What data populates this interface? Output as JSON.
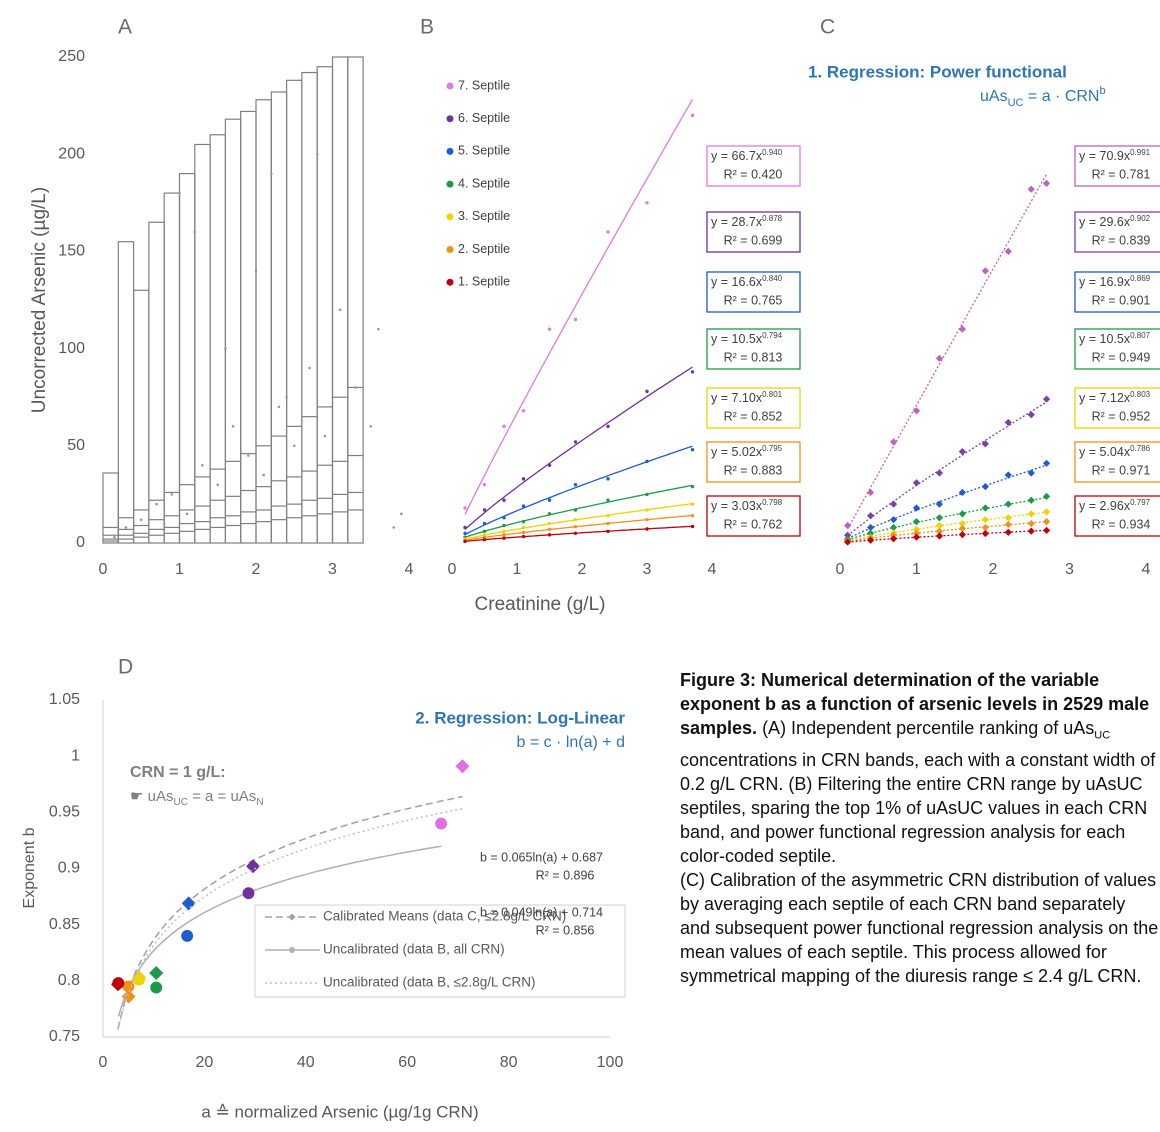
{
  "chart_data": [
    {
      "type": "box",
      "label": "A",
      "y_label": "Uncorrected Arsenic (µg/L)",
      "color": "#7f7f7f",
      "xlim": [
        0,
        4
      ],
      "ylim": [
        0,
        250
      ],
      "xticks": [
        0,
        1,
        2,
        3,
        4
      ],
      "yticks": [
        0,
        50,
        100,
        150,
        200,
        250
      ],
      "bins": [
        0,
        0.2,
        0.4,
        0.6,
        0.8,
        1,
        1.2,
        1.4,
        1.6,
        1.8,
        2,
        2.2,
        2.4,
        2.6,
        2.8,
        3,
        3.2,
        3.4
      ],
      "levels": [
        [
          1,
          2,
          4,
          8,
          36
        ],
        [
          2,
          4,
          7,
          13,
          155
        ],
        [
          3,
          5,
          9,
          17,
          130
        ],
        [
          4,
          7,
          12,
          22,
          165
        ],
        [
          5,
          8,
          14,
          26,
          180
        ],
        [
          6,
          10,
          17,
          30,
          190
        ],
        [
          7,
          11,
          19,
          34,
          205
        ],
        [
          8,
          13,
          22,
          38,
          210
        ],
        [
          9,
          14,
          24,
          42,
          218
        ],
        [
          10,
          16,
          27,
          46,
          222
        ],
        [
          11,
          17,
          29,
          50,
          228
        ],
        [
          12,
          19,
          32,
          55,
          232
        ],
        [
          13,
          20,
          34,
          60,
          238
        ],
        [
          14,
          22,
          37,
          65,
          242
        ],
        [
          15,
          23,
          40,
          70,
          245
        ],
        [
          16,
          25,
          42,
          75,
          250
        ],
        [
          17,
          26,
          45,
          80,
          250
        ]
      ],
      "points": {
        "x": [
          0.15,
          0.3,
          0.5,
          0.7,
          0.9,
          1.1,
          1.3,
          1.5,
          1.7,
          1.9,
          2.1,
          2.3,
          2.5,
          2.7,
          2.9,
          3.1,
          3.3,
          3.6,
          3.9,
          1.2,
          2.0,
          2.8,
          0.4,
          1.6,
          2.4,
          3.5,
          0.8,
          3.8,
          1.0,
          2.2
        ],
        "y": [
          3,
          8,
          12,
          20,
          25,
          15,
          40,
          30,
          60,
          45,
          35,
          70,
          50,
          90,
          55,
          120,
          80,
          110,
          15,
          160,
          140,
          200,
          5,
          100,
          75,
          60,
          10,
          8,
          180,
          190
        ]
      }
    },
    {
      "type": "scatter",
      "label": "B",
      "x_label": "Creatinine (g/L)",
      "fit": "power",
      "marker": "circle",
      "xlim": [
        0,
        4
      ],
      "ylim": [
        0,
        250
      ],
      "xticks": [
        0,
        1,
        2,
        3,
        4
      ],
      "series": [
        {
          "name": "7. Septile",
          "color": "#e07be0",
          "x": [
            0.2,
            0.5,
            0.8,
            1.1,
            1.5,
            1.9,
            2.4,
            3.0,
            3.7
          ],
          "values": [
            18,
            30,
            60,
            68,
            110,
            115,
            160,
            175,
            220
          ],
          "fit": {
            "a": 66.7,
            "b": 0.94
          },
          "labels": {
            "eq": "y = 66.7x",
            "exp": "0.940",
            "r2": "R² = 0.420"
          }
        },
        {
          "name": "6. Septile",
          "color": "#7030a0",
          "x": [
            0.2,
            0.5,
            0.8,
            1.1,
            1.5,
            1.9,
            2.4,
            3.0,
            3.7
          ],
          "values": [
            8,
            17,
            22,
            33,
            40,
            52,
            60,
            78,
            88
          ],
          "fit": {
            "a": 28.7,
            "b": 0.878
          },
          "labels": {
            "eq": "y = 28.7x",
            "exp": "0.878",
            "r2": "R² = 0.699"
          }
        },
        {
          "name": "5. Septile",
          "color": "#1f5bd1",
          "x": [
            0.2,
            0.5,
            0.8,
            1.1,
            1.5,
            1.9,
            2.4,
            3.0,
            3.7
          ],
          "values": [
            5,
            10,
            13,
            19,
            22,
            30,
            33,
            42,
            48
          ],
          "fit": {
            "a": 16.6,
            "b": 0.84
          },
          "labels": {
            "eq": "y = 16.6x",
            "exp": "0.840",
            "r2": "R² = 0.765"
          }
        },
        {
          "name": "4. Septile",
          "color": "#1a9b48",
          "x": [
            0.2,
            0.5,
            0.8,
            1.1,
            1.5,
            1.9,
            2.4,
            3.0,
            3.7
          ],
          "values": [
            3,
            6,
            9,
            11,
            15,
            17,
            22,
            25,
            29
          ],
          "fit": {
            "a": 10.5,
            "b": 0.794
          },
          "labels": {
            "eq": "y = 10.5x",
            "exp": "0.794",
            "r2": "R² = 0.813"
          }
        },
        {
          "name": "3. Septile",
          "color": "#f2d100",
          "x": [
            0.2,
            0.5,
            0.8,
            1.1,
            1.5,
            1.9,
            2.4,
            3.0,
            3.7
          ],
          "values": [
            2,
            4,
            6,
            8,
            10,
            12,
            14,
            17,
            20
          ],
          "fit": {
            "a": 7.1,
            "b": 0.801
          },
          "labels": {
            "eq": "y = 7.10x",
            "exp": "0.801",
            "r2": "R² = 0.852"
          }
        },
        {
          "name": "2. Septile",
          "color": "#f39019",
          "x": [
            0.2,
            0.5,
            0.8,
            1.1,
            1.5,
            1.9,
            2.4,
            3.0,
            3.7
          ],
          "values": [
            1.4,
            2.9,
            4.2,
            5.4,
            7,
            8.4,
            10,
            12,
            14
          ],
          "fit": {
            "a": 5.02,
            "b": 0.795
          },
          "labels": {
            "eq": "y = 5.02x",
            "exp": "0.795",
            "r2": "R² = 0.883"
          }
        },
        {
          "name": "1. Septile",
          "color": "#c0000b",
          "x": [
            0.2,
            0.5,
            0.8,
            1.1,
            1.5,
            1.9,
            2.4,
            3.0,
            3.7
          ],
          "values": [
            0.8,
            1.7,
            2.5,
            3.3,
            4.2,
            5,
            6,
            7.2,
            8.5
          ],
          "fit": {
            "a": 3.03,
            "b": 0.798
          },
          "labels": {
            "eq": "y = 3.03x",
            "exp": "0.798",
            "r2": "R² = 0.762"
          }
        }
      ]
    },
    {
      "type": "scatter",
      "label": "C",
      "title": "1. Regression: Power functional",
      "subtitle_parts": [
        "uAs",
        "UC",
        " = a · CRN",
        "b"
      ],
      "fit": "power",
      "marker": "diamond",
      "xlim": [
        0,
        4
      ],
      "ylim": [
        0,
        250
      ],
      "xticks": [
        0,
        1,
        2,
        3,
        4
      ],
      "series": [
        {
          "color": "#c060c0",
          "x": [
            0.1,
            0.4,
            0.7,
            1.0,
            1.3,
            1.6,
            1.9,
            2.2,
            2.5,
            2.7
          ],
          "values": [
            9,
            26,
            52,
            68,
            95,
            110,
            140,
            150,
            182,
            185
          ],
          "fit": {
            "a": 70.9,
            "b": 0.991
          },
          "labels": {
            "eq": "y = 70.9x",
            "exp": "0.991",
            "r2": "R² = 0.781"
          }
        },
        {
          "color": "#7a3fb0",
          "x": [
            0.1,
            0.4,
            0.7,
            1.0,
            1.3,
            1.6,
            1.9,
            2.2,
            2.5,
            2.7
          ],
          "values": [
            4,
            14,
            20,
            31,
            36,
            47,
            51,
            62,
            66,
            74
          ],
          "fit": {
            "a": 29.6,
            "b": 0.902
          },
          "labels": {
            "eq": "y = 29.6x",
            "exp": "0.902",
            "r2": "R² = 0.839"
          }
        },
        {
          "color": "#1f5bd1",
          "x": [
            0.1,
            0.4,
            0.7,
            1.0,
            1.3,
            1.6,
            1.9,
            2.2,
            2.5,
            2.7
          ],
          "values": [
            2,
            8,
            12,
            18,
            20,
            26,
            29,
            35,
            36,
            41
          ],
          "fit": {
            "a": 16.9,
            "b": 0.869
          },
          "labels": {
            "eq": "y = 16.9x",
            "exp": "0.869",
            "r2": "R² = 0.901"
          }
        },
        {
          "color": "#1a9b48",
          "x": [
            0.1,
            0.4,
            0.7,
            1.0,
            1.3,
            1.6,
            1.9,
            2.2,
            2.5,
            2.7
          ],
          "values": [
            2,
            5,
            8,
            11,
            13,
            15,
            18,
            20,
            22,
            24
          ],
          "fit": {
            "a": 10.5,
            "b": 0.807
          },
          "labels": {
            "eq": "y = 10.5x",
            "exp": "0.807",
            "r2": "R² = 0.949"
          }
        },
        {
          "color": "#f2d100",
          "x": [
            0.1,
            0.4,
            0.7,
            1.0,
            1.3,
            1.6,
            1.9,
            2.2,
            2.5,
            2.7
          ],
          "values": [
            1,
            3,
            5,
            7,
            9,
            10,
            12,
            13,
            15,
            16
          ],
          "fit": {
            "a": 7.12,
            "b": 0.803
          },
          "labels": {
            "eq": "y = 7.12x",
            "exp": "0.803",
            "r2": "R² = 0.952"
          }
        },
        {
          "color": "#f39019",
          "x": [
            0.1,
            0.4,
            0.7,
            1.0,
            1.3,
            1.6,
            1.9,
            2.2,
            2.5,
            2.7
          ],
          "values": [
            1,
            2.5,
            4,
            5,
            6,
            7.5,
            8,
            9.5,
            10,
            11
          ],
          "fit": {
            "a": 5.04,
            "b": 0.786
          },
          "labels": {
            "eq": "y = 5.04x",
            "exp": "0.786",
            "r2": "R² = 0.971"
          }
        },
        {
          "color": "#c0000b",
          "x": [
            0.1,
            0.4,
            0.7,
            1.0,
            1.3,
            1.6,
            1.9,
            2.2,
            2.5,
            2.7
          ],
          "values": [
            0.5,
            1.4,
            2.2,
            3,
            3.6,
            4.3,
            4.9,
            5.5,
            6.1,
            6.5
          ],
          "fit": {
            "a": 2.96,
            "b": 0.797
          },
          "labels": {
            "eq": "y = 2.96x",
            "exp": "0.797",
            "r2": "R² = 0.934"
          }
        }
      ]
    },
    {
      "type": "scatter",
      "label": "D",
      "x_label": "a ≙ normalized Arsenic (µg/1g CRN)",
      "y_label": "Exponent b",
      "fit": "log",
      "title": "2. Regression: Log-Linear",
      "subtitle": "b = c  · ln(a) + d",
      "note_title": "CRN = 1 g/L:",
      "note_parts": [
        "☛ uAs",
        "UC",
        " = a = uAs",
        "N"
      ],
      "xlim": [
        0,
        100
      ],
      "ylim": [
        0.75,
        1.05
      ],
      "xticks": [
        0,
        20,
        40,
        60,
        80,
        100
      ],
      "yticks": [
        0.75,
        0.8,
        0.85,
        0.9,
        0.95,
        1,
        1.05
      ],
      "series": [
        {
          "name": "Calibrated Means (data C, ≤2.8g/L CRN)",
          "marker": "diamond",
          "line": "dashed",
          "color": "#a0a0a0",
          "x": [
            70.9,
            29.6,
            16.9,
            10.5,
            7.12,
            5.04,
            2.96
          ],
          "values": [
            0.991,
            0.902,
            0.869,
            0.807,
            0.803,
            0.786,
            0.797
          ],
          "colors": [
            "#e070e0",
            "#7030a0",
            "#1f5bd1",
            "#1a9b48",
            "#f2d100",
            "#f39019",
            "#c0000b"
          ],
          "fit": {
            "c": 0.065,
            "d": 0.687
          },
          "eq": "b = 0.065ln(a) + 0.687",
          "r2": "R² = 0.896"
        },
        {
          "name": "Uncalibrated (data B, all CRN)",
          "marker": "circle",
          "line": "solid",
          "color": "#b0b0b0",
          "x": [
            66.7,
            28.7,
            16.6,
            10.5,
            7.1,
            5.02,
            3.03
          ],
          "values": [
            0.94,
            0.878,
            0.84,
            0.794,
            0.801,
            0.795,
            0.798
          ],
          "colors": [
            "#e070e0",
            "#7030a0",
            "#1f5bd1",
            "#1a9b48",
            "#f2d100",
            "#f39019",
            "#c0000b"
          ],
          "fit": {
            "c": 0.049,
            "d": 0.714
          },
          "eq": "b = 0.049ln(a) + 0.714",
          "r2": "R² = 0.856"
        },
        {
          "name": "Uncalibrated (data B, ≤2.8g/L CRN)",
          "line": "dotted",
          "color": "#c0c0c0",
          "fit": {
            "c": 0.062,
            "d": 0.689
          }
        }
      ]
    }
  ],
  "caption": {
    "title": "Figure 3: Numerical determination of the variable exponent b as a function of arsenic levels in 2529 male samples.",
    "p1": [
      "(A) Independent percentile ranking of uAs",
      "UC",
      " concentrations in CRN bands, each with a constant width of 0.2 g/L CRN. (B) Filtering the entire CRN range by uAsUC septiles, sparing the top 1% of uAsUC values in each CRN band, and power functional regression analysis for each color-coded septile."
    ],
    "p2": "(C) Calibration of the asymmetric CRN distribution of values by averaging each septile of each CRN band separately and subsequent power functional regression analysis on the mean values of each septile. This process allowed for symmetrical mapping of the diuresis range ≤ 2.4 g/L CRN."
  }
}
